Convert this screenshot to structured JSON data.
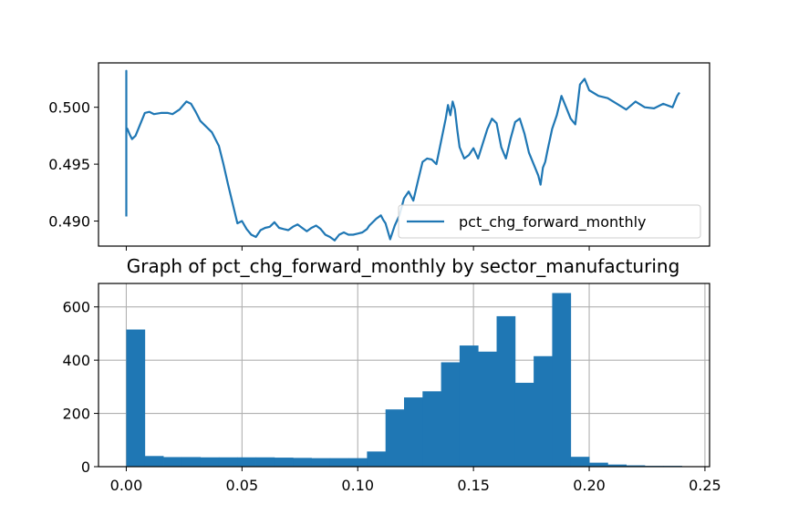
{
  "chart_data": [
    {
      "type": "line",
      "title": "",
      "xlabel": "",
      "ylabel": "",
      "xlim": [
        -0.012,
        0.252
      ],
      "ylim": [
        0.4878,
        0.5039
      ],
      "x_ticks": [
        0.0,
        0.05,
        0.1,
        0.15,
        0.2
      ],
      "x_tick_labels": [
        "",
        "",
        "",
        "",
        ""
      ],
      "y_ticks": [
        0.49,
        0.495,
        0.5
      ],
      "y_tick_labels": [
        "0.490",
        "0.495",
        "0.500"
      ],
      "grid": false,
      "legend": {
        "position": "lower-right",
        "entries": [
          "pct_chg_forward_monthly"
        ]
      },
      "series": [
        {
          "name": "pct_chg_forward_monthly",
          "color": "#1f77b4",
          "x": [
            0.0,
            0.0,
            0.0,
            0.0005,
            0.0015,
            0.0025,
            0.004,
            0.006,
            0.008,
            0.01,
            0.012,
            0.015,
            0.018,
            0.02,
            0.023,
            0.026,
            0.028,
            0.03,
            0.032,
            0.035,
            0.037,
            0.04,
            0.042,
            0.044,
            0.046,
            0.048,
            0.05,
            0.052,
            0.054,
            0.056,
            0.058,
            0.06,
            0.062,
            0.064,
            0.066,
            0.068,
            0.07,
            0.072,
            0.074,
            0.076,
            0.078,
            0.08,
            0.082,
            0.084,
            0.086,
            0.088,
            0.09,
            0.092,
            0.094,
            0.096,
            0.098,
            0.1,
            0.102,
            0.104,
            0.105,
            0.106,
            0.108,
            0.11,
            0.111,
            0.112,
            0.114,
            0.116,
            0.118,
            0.12,
            0.122,
            0.124,
            0.126,
            0.128,
            0.13,
            0.132,
            0.134,
            0.136,
            0.138,
            0.139,
            0.14,
            0.141,
            0.142,
            0.143,
            0.144,
            0.145,
            0.146,
            0.148,
            0.15,
            0.152,
            0.154,
            0.156,
            0.158,
            0.16,
            0.162,
            0.164,
            0.166,
            0.168,
            0.17,
            0.172,
            0.174,
            0.176,
            0.178,
            0.179,
            0.18,
            0.181,
            0.182,
            0.184,
            0.186,
            0.188,
            0.19,
            0.192,
            0.194,
            0.196,
            0.198,
            0.2,
            0.204,
            0.208,
            0.212,
            0.216,
            0.22,
            0.224,
            0.228,
            0.232,
            0.236,
            0.238,
            0.239
          ],
          "y": [
            0.4904,
            0.5032,
            0.4982,
            0.4981,
            0.4976,
            0.4972,
            0.4975,
            0.4985,
            0.4995,
            0.4996,
            0.4994,
            0.4995,
            0.4995,
            0.4994,
            0.4998,
            0.5005,
            0.5003,
            0.4996,
            0.4988,
            0.4982,
            0.4978,
            0.4966,
            0.495,
            0.4932,
            0.4915,
            0.4898,
            0.49,
            0.4893,
            0.4888,
            0.4886,
            0.4892,
            0.4894,
            0.4895,
            0.4899,
            0.4894,
            0.4893,
            0.4892,
            0.4895,
            0.4897,
            0.4894,
            0.4891,
            0.4894,
            0.4896,
            0.4893,
            0.4888,
            0.4886,
            0.4883,
            0.4888,
            0.489,
            0.4888,
            0.4888,
            0.4889,
            0.489,
            0.4893,
            0.4896,
            0.4898,
            0.4902,
            0.4905,
            0.4901,
            0.4898,
            0.4884,
            0.4896,
            0.4905,
            0.492,
            0.4926,
            0.4918,
            0.4935,
            0.4952,
            0.4955,
            0.4954,
            0.495,
            0.497,
            0.499,
            0.5002,
            0.4993,
            0.5005,
            0.4998,
            0.498,
            0.4965,
            0.496,
            0.4955,
            0.4958,
            0.4964,
            0.4955,
            0.4968,
            0.4981,
            0.499,
            0.4986,
            0.4965,
            0.4955,
            0.4972,
            0.4987,
            0.499,
            0.4977,
            0.496,
            0.495,
            0.494,
            0.4932,
            0.4947,
            0.4952,
            0.4962,
            0.4981,
            0.4993,
            0.501,
            0.5,
            0.499,
            0.4985,
            0.502,
            0.5025,
            0.5015,
            0.501,
            0.5008,
            0.5003,
            0.4998,
            0.5005,
            0.5,
            0.4999,
            0.5003,
            0.5,
            0.501,
            0.5013
          ]
        }
      ]
    },
    {
      "type": "bar",
      "title": "Graph of pct_chg_forward_monthly by sector_manufacturing",
      "xlabel": "",
      "ylabel": "",
      "xlim": [
        -0.012,
        0.252
      ],
      "ylim": [
        0,
        688
      ],
      "x_ticks": [
        0.0,
        0.05,
        0.1,
        0.15,
        0.2,
        0.25
      ],
      "x_tick_labels": [
        "0.00",
        "0.05",
        "0.10",
        "0.15",
        "0.20",
        "0.25"
      ],
      "y_ticks": [
        0,
        200,
        400,
        600
      ],
      "y_tick_labels": [
        "0",
        "200",
        "400",
        "600"
      ],
      "grid": true,
      "legend": null,
      "bin_edges": [
        0.0,
        0.008,
        0.016,
        0.024,
        0.032,
        0.04,
        0.048,
        0.056,
        0.064,
        0.072,
        0.08,
        0.088,
        0.096,
        0.104,
        0.112,
        0.12,
        0.128,
        0.136,
        0.144,
        0.152,
        0.16,
        0.168,
        0.176,
        0.184,
        0.192,
        0.2,
        0.208,
        0.216,
        0.224,
        0.232,
        0.24
      ],
      "values": [
        515,
        40,
        36,
        36,
        35,
        35,
        35,
        35,
        34,
        33,
        32,
        32,
        32,
        57,
        215,
        260,
        283,
        392,
        455,
        432,
        565,
        315,
        415,
        652,
        37,
        15,
        8,
        5,
        3,
        3
      ],
      "color": "#1f77b4"
    }
  ]
}
